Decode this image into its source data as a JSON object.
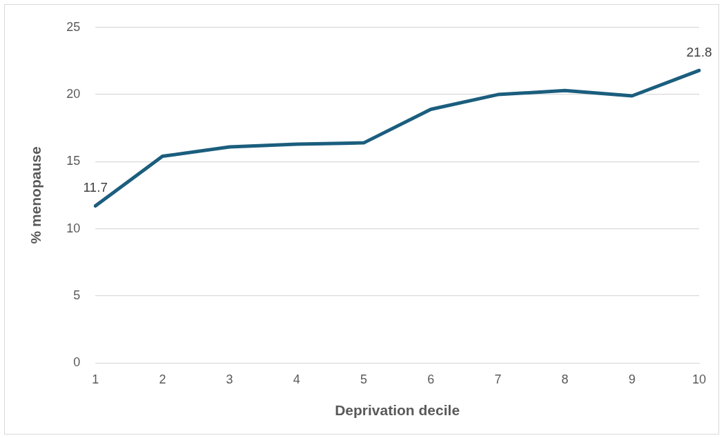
{
  "chart_data": {
    "type": "line",
    "xlabel": "Deprivation decile",
    "ylabel": "% menopause",
    "categories": [
      "1",
      "2",
      "3",
      "4",
      "5",
      "6",
      "7",
      "8",
      "9",
      "10"
    ],
    "series": [
      {
        "color": "#1b5e7e",
        "values": [
          11.7,
          15.4,
          16.1,
          16.3,
          16.4,
          18.9,
          20.0,
          20.3,
          19.9,
          21.8
        ],
        "value_labels": [
          "11.7",
          null,
          null,
          null,
          null,
          null,
          null,
          null,
          null,
          "21.8"
        ]
      }
    ],
    "ylim": [
      0,
      25
    ],
    "yticks": [
      0,
      5,
      10,
      15,
      20,
      25
    ],
    "grid": "y",
    "legend": false,
    "marker": "none",
    "line_style": "solid"
  }
}
